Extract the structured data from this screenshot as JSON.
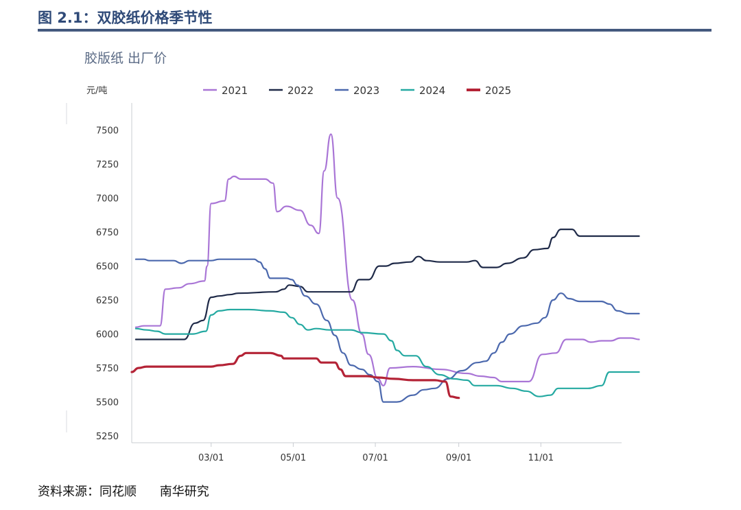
{
  "figure": {
    "title": "图 2.1：双胶纸价格季节性",
    "source_label": "资料来源：同花顺",
    "org": "南华研究"
  },
  "chart_data": {
    "type": "line",
    "title": "胶版纸 出厂价",
    "ylabel": "元/吨",
    "xlabel": "",
    "ylim": [
      5200,
      7700
    ],
    "yticks": [
      5250,
      5500,
      5750,
      6000,
      6250,
      6500,
      6750,
      7000,
      7250,
      7500
    ],
    "xlim": [
      1,
      365
    ],
    "xticks": [
      {
        "day": 60,
        "label": "03/01"
      },
      {
        "day": 121,
        "label": "05/01"
      },
      {
        "day": 182,
        "label": "07/01"
      },
      {
        "day": 244,
        "label": "09/01"
      },
      {
        "day": 305,
        "label": "11/01"
      }
    ],
    "legend_position": "top",
    "grid": false,
    "series": [
      {
        "name": "2021",
        "color": "#a975d6",
        "points": [
          [
            4,
            6050
          ],
          [
            10,
            6060
          ],
          [
            22,
            6060
          ],
          [
            26,
            6330
          ],
          [
            36,
            6340
          ],
          [
            44,
            6370
          ],
          [
            55,
            6390
          ],
          [
            57,
            6500
          ],
          [
            60,
            6960
          ],
          [
            70,
            6980
          ],
          [
            73,
            7140
          ],
          [
            77,
            7160
          ],
          [
            82,
            7140
          ],
          [
            100,
            7140
          ],
          [
            106,
            7110
          ],
          [
            109,
            6900
          ],
          [
            116,
            6940
          ],
          [
            126,
            6910
          ],
          [
            134,
            6800
          ],
          [
            140,
            6740
          ],
          [
            144,
            7200
          ],
          [
            149,
            7470
          ],
          [
            154,
            7000
          ],
          [
            165,
            6250
          ],
          [
            172,
            6000
          ],
          [
            177,
            5850
          ],
          [
            184,
            5670
          ],
          [
            188,
            5620
          ],
          [
            193,
            5750
          ],
          [
            210,
            5760
          ],
          [
            230,
            5740
          ],
          [
            250,
            5710
          ],
          [
            260,
            5690
          ],
          [
            270,
            5680
          ],
          [
            276,
            5650
          ],
          [
            296,
            5650
          ],
          [
            306,
            5850
          ],
          [
            316,
            5860
          ],
          [
            324,
            5960
          ],
          [
            336,
            5960
          ],
          [
            342,
            5940
          ],
          [
            350,
            5950
          ],
          [
            357,
            5950
          ],
          [
            364,
            5970
          ],
          [
            372,
            5970
          ],
          [
            378,
            5960
          ]
        ]
      },
      {
        "name": "2022",
        "color": "#1f2a48",
        "points": [
          [
            4,
            5960
          ],
          [
            30,
            5960
          ],
          [
            40,
            5960
          ],
          [
            48,
            6080
          ],
          [
            54,
            6100
          ],
          [
            60,
            6270
          ],
          [
            66,
            6280
          ],
          [
            74,
            6290
          ],
          [
            80,
            6300
          ],
          [
            108,
            6310
          ],
          [
            114,
            6330
          ],
          [
            118,
            6360
          ],
          [
            126,
            6350
          ],
          [
            132,
            6310
          ],
          [
            148,
            6310
          ],
          [
            164,
            6310
          ],
          [
            170,
            6400
          ],
          [
            177,
            6400
          ],
          [
            185,
            6500
          ],
          [
            190,
            6500
          ],
          [
            196,
            6520
          ],
          [
            208,
            6530
          ],
          [
            214,
            6570
          ],
          [
            220,
            6540
          ],
          [
            230,
            6530
          ],
          [
            250,
            6530
          ],
          [
            256,
            6540
          ],
          [
            262,
            6490
          ],
          [
            272,
            6490
          ],
          [
            280,
            6520
          ],
          [
            292,
            6560
          ],
          [
            300,
            6620
          ],
          [
            310,
            6630
          ],
          [
            314,
            6710
          ],
          [
            320,
            6770
          ],
          [
            328,
            6770
          ],
          [
            334,
            6720
          ],
          [
            350,
            6720
          ],
          [
            378,
            6720
          ]
        ]
      },
      {
        "name": "2023",
        "color": "#4b68ad",
        "points": [
          [
            4,
            6550
          ],
          [
            10,
            6550
          ],
          [
            14,
            6540
          ],
          [
            32,
            6540
          ],
          [
            38,
            6520
          ],
          [
            44,
            6540
          ],
          [
            60,
            6540
          ],
          [
            66,
            6550
          ],
          [
            92,
            6550
          ],
          [
            96,
            6530
          ],
          [
            100,
            6480
          ],
          [
            104,
            6410
          ],
          [
            116,
            6410
          ],
          [
            120,
            6400
          ],
          [
            124,
            6360
          ],
          [
            130,
            6280
          ],
          [
            138,
            6220
          ],
          [
            146,
            6100
          ],
          [
            152,
            5990
          ],
          [
            158,
            5860
          ],
          [
            164,
            5770
          ],
          [
            172,
            5740
          ],
          [
            178,
            5700
          ],
          [
            184,
            5650
          ],
          [
            188,
            5500
          ],
          [
            198,
            5500
          ],
          [
            210,
            5550
          ],
          [
            218,
            5590
          ],
          [
            226,
            5600
          ],
          [
            236,
            5670
          ],
          [
            246,
            5730
          ],
          [
            258,
            5790
          ],
          [
            264,
            5800
          ],
          [
            270,
            5860
          ],
          [
            276,
            5940
          ],
          [
            282,
            6000
          ],
          [
            292,
            6060
          ],
          [
            302,
            6080
          ],
          [
            308,
            6120
          ],
          [
            314,
            6250
          ],
          [
            320,
            6300
          ],
          [
            326,
            6260
          ],
          [
            334,
            6240
          ],
          [
            350,
            6240
          ],
          [
            356,
            6220
          ],
          [
            362,
            6170
          ],
          [
            370,
            6150
          ],
          [
            378,
            6150
          ]
        ]
      },
      {
        "name": "2024",
        "color": "#24a9a1",
        "points": [
          [
            4,
            6040
          ],
          [
            12,
            6030
          ],
          [
            20,
            6020
          ],
          [
            26,
            6000
          ],
          [
            46,
            6000
          ],
          [
            56,
            6020
          ],
          [
            60,
            6140
          ],
          [
            66,
            6170
          ],
          [
            74,
            6180
          ],
          [
            88,
            6180
          ],
          [
            104,
            6170
          ],
          [
            114,
            6160
          ],
          [
            120,
            6120
          ],
          [
            126,
            6070
          ],
          [
            132,
            6030
          ],
          [
            138,
            6040
          ],
          [
            148,
            6030
          ],
          [
            164,
            6030
          ],
          [
            172,
            6010
          ],
          [
            188,
            6000
          ],
          [
            194,
            5950
          ],
          [
            198,
            5880
          ],
          [
            204,
            5840
          ],
          [
            212,
            5840
          ],
          [
            220,
            5760
          ],
          [
            230,
            5700
          ],
          [
            240,
            5670
          ],
          [
            250,
            5660
          ],
          [
            256,
            5620
          ],
          [
            272,
            5620
          ],
          [
            284,
            5600
          ],
          [
            294,
            5580
          ],
          [
            304,
            5540
          ],
          [
            312,
            5550
          ],
          [
            318,
            5600
          ],
          [
            340,
            5600
          ],
          [
            350,
            5620
          ],
          [
            356,
            5720
          ],
          [
            378,
            5720
          ]
        ]
      },
      {
        "name": "2025",
        "color": "#b42336",
        "points": [
          [
            1,
            5720
          ],
          [
            6,
            5750
          ],
          [
            12,
            5760
          ],
          [
            60,
            5760
          ],
          [
            66,
            5770
          ],
          [
            76,
            5780
          ],
          [
            82,
            5840
          ],
          [
            86,
            5860
          ],
          [
            104,
            5860
          ],
          [
            112,
            5840
          ],
          [
            114,
            5820
          ],
          [
            138,
            5820
          ],
          [
            142,
            5790
          ],
          [
            152,
            5790
          ],
          [
            156,
            5740
          ],
          [
            160,
            5690
          ],
          [
            176,
            5690
          ],
          [
            184,
            5680
          ],
          [
            196,
            5670
          ],
          [
            210,
            5660
          ],
          [
            226,
            5660
          ],
          [
            234,
            5650
          ],
          [
            238,
            5540
          ],
          [
            244,
            5530
          ]
        ]
      }
    ]
  }
}
